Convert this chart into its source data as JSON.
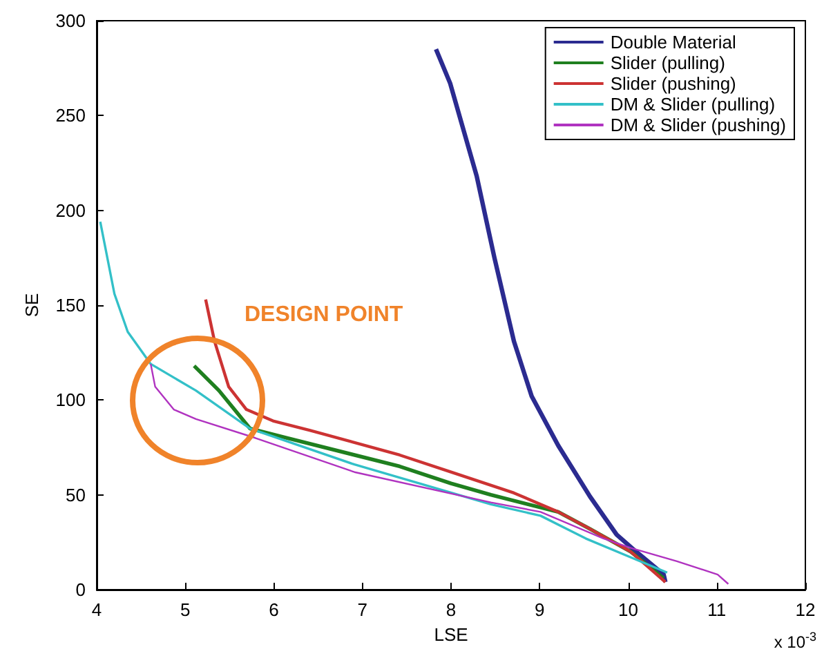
{
  "chart_data": {
    "type": "line",
    "xlabel": "LSE",
    "ylabel": "SE",
    "xlim": [
      4,
      12
    ],
    "xticks": [
      4,
      5,
      6,
      7,
      8,
      9,
      10,
      11,
      12
    ],
    "ylim": [
      0,
      300
    ],
    "yticks": [
      0,
      50,
      100,
      150,
      200,
      250,
      300
    ],
    "grid": false,
    "legend": "top right",
    "marker": "none",
    "line_style": "solid",
    "annotations": [
      "DESIGN POINT",
      "x 10$^{-3}$"
    ],
    "series": [
      {
        "name": "Double Material",
        "color": "#2b2b90",
        "x": [
          7.83,
          7.99,
          8.29,
          8.49,
          8.71,
          8.91,
          9.21,
          9.57,
          9.87,
          10.09,
          10.4,
          10.42
        ],
        "values": [
          285,
          267,
          218,
          175,
          131,
          102,
          76,
          49,
          29,
          20,
          8,
          4
        ]
      },
      {
        "name": "Slider (pulling)",
        "color": "#1f7f1f",
        "x": [
          5.1,
          5.38,
          5.73,
          6.15,
          7.42,
          8.0,
          8.45,
          9.21,
          9.57,
          10.03,
          10.4
        ],
        "values": [
          118,
          105,
          85,
          80,
          65,
          56,
          50,
          41,
          32,
          20,
          6
        ]
      },
      {
        "name": "Slider (pushing)",
        "color": "#cc3333",
        "x": [
          5.23,
          5.33,
          5.49,
          5.69,
          5.99,
          6.41,
          7.42,
          8.0,
          8.71,
          9.21,
          9.57,
          10.03,
          10.42
        ],
        "values": [
          153,
          131,
          107,
          95,
          89,
          84,
          71,
          62,
          51,
          41,
          32,
          20,
          4
        ]
      },
      {
        "name": "DM & Slider (pulling)",
        "color": "#33c0c8",
        "x": [
          4.04,
          4.2,
          4.35,
          4.61,
          5.12,
          5.73,
          6.91,
          8.45,
          9.01,
          9.52,
          10.03,
          10.44
        ],
        "values": [
          194,
          156,
          136,
          119,
          105,
          85,
          66,
          45,
          39,
          27,
          17,
          9
        ]
      },
      {
        "name": "DM & Slider (pushing)",
        "color": "#b033c0",
        "x": [
          4.61,
          4.66,
          4.87,
          5.12,
          5.79,
          6.91,
          8.45,
          9.01,
          9.72,
          10.03,
          10.55,
          11.01,
          11.13
        ],
        "values": [
          119,
          107,
          95,
          90,
          80,
          62,
          46,
          41,
          27,
          22,
          15,
          8,
          3
        ]
      }
    ]
  }
}
